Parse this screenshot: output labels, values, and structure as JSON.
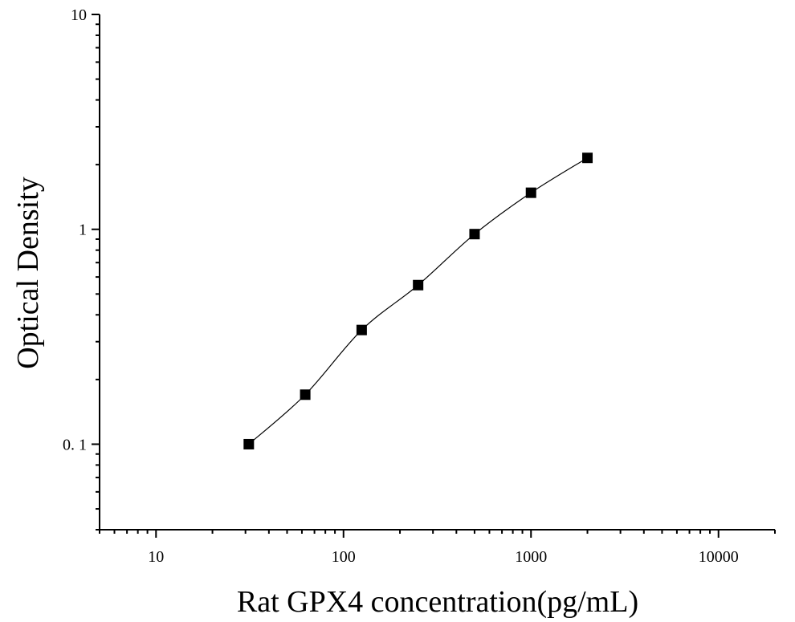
{
  "chart_data": {
    "type": "scatter",
    "title": "",
    "xlabel": "Rat GPX4 concentration(pg/mL)",
    "ylabel": "Optical Density",
    "x_scale": "log",
    "y_scale": "log",
    "xlim": [
      5,
      20000
    ],
    "ylim": [
      0.04,
      10
    ],
    "x_ticks": [
      {
        "value": 10,
        "label": "10"
      },
      {
        "value": 100,
        "label": "100"
      },
      {
        "value": 1000,
        "label": "1000"
      },
      {
        "value": 10000,
        "label": "10000"
      }
    ],
    "y_ticks": [
      {
        "value": 0.1,
        "label": "0. 1"
      },
      {
        "value": 1,
        "label": "1"
      },
      {
        "value": 10,
        "label": "10"
      }
    ],
    "grid": false,
    "legend": "none",
    "marker": "square",
    "series": [
      {
        "x": [
          31.25,
          62.5,
          125,
          250,
          500,
          1000,
          2000
        ],
        "y": [
          0.1,
          0.17,
          0.34,
          0.55,
          0.95,
          1.48,
          2.15
        ]
      }
    ],
    "fit_curve": true,
    "colors": {
      "marker": "#000000",
      "line": "#000000",
      "axis": "#000000"
    }
  }
}
